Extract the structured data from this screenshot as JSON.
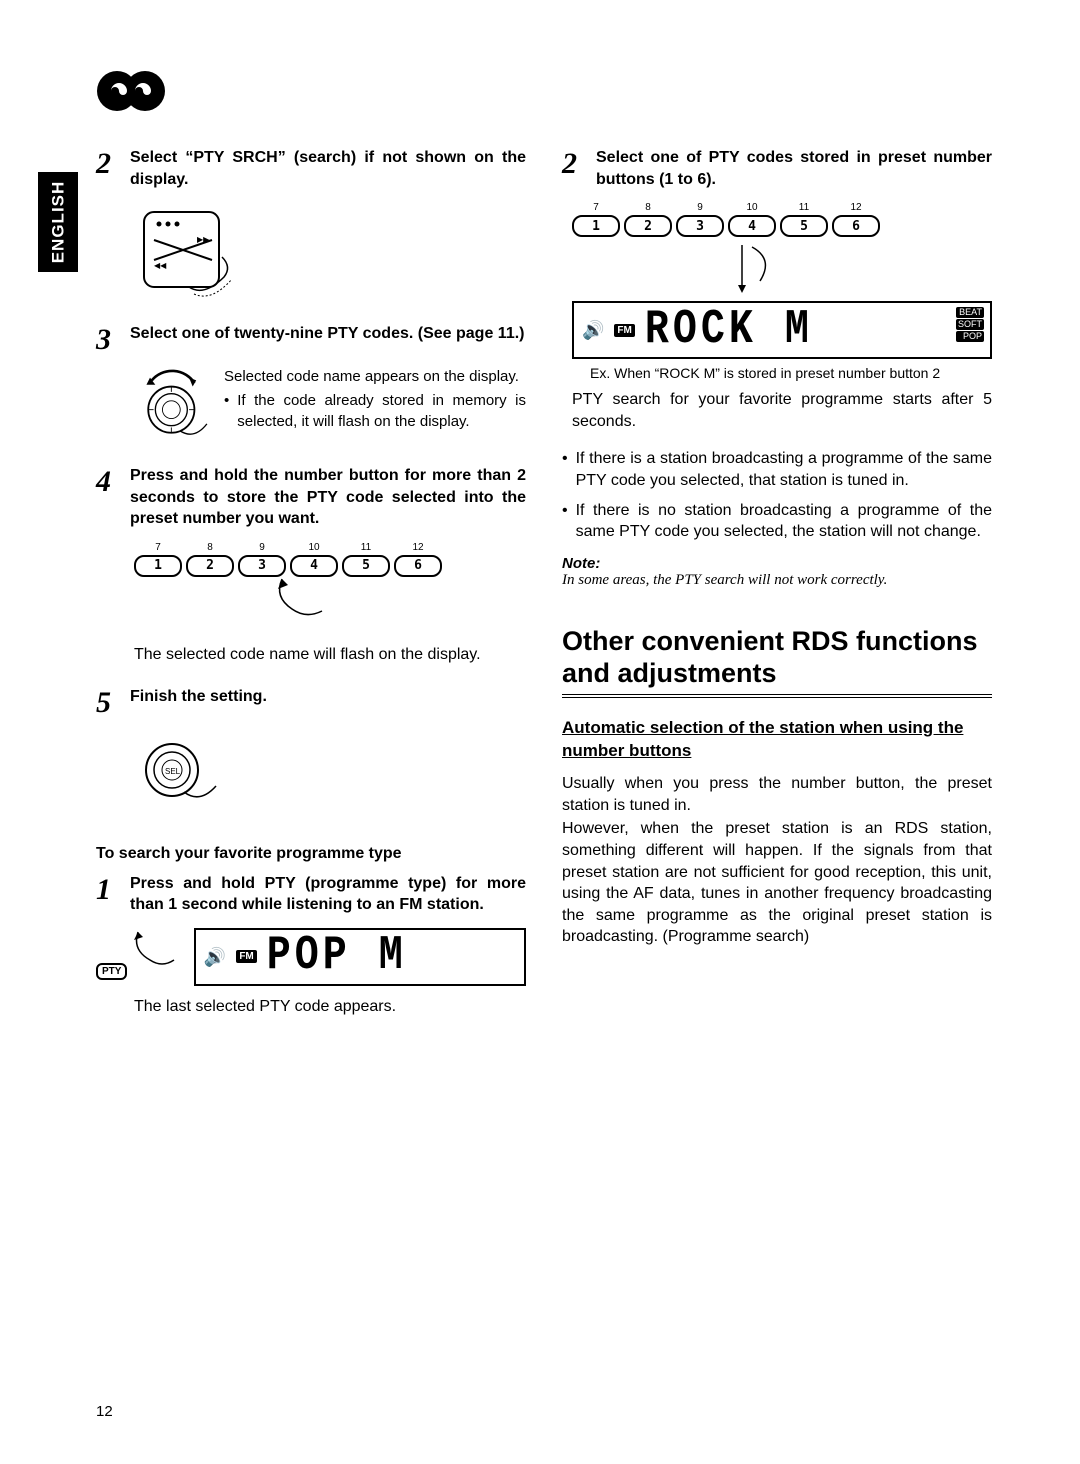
{
  "page_number": "12",
  "language_tab": "ENGLISH",
  "left": {
    "step2": {
      "title": "Select “PTY SRCH” (search) if not shown on the display."
    },
    "step3": {
      "title": "Select one of twenty-nine PTY codes. (See page 11.)",
      "line1": "Selected code name appears on the display.",
      "bullet": "If the code already stored in memory is selected, it will flash on the display."
    },
    "step4": {
      "title": "Press and hold the number button for more than 2 seconds to store the PTY code selected into the preset number you want.",
      "after": "The selected code name will flash on the display."
    },
    "step5": {
      "title": "Finish the setting."
    },
    "search_heading": "To search your favorite programme type",
    "search_step1": {
      "title": "Press and hold PTY (programme type) for more than 1 second while listening to an FM station.",
      "after": "The last selected PTY code appears."
    },
    "pty_button_label": "PTY",
    "lcd1": {
      "fm": "FM",
      "text": "POP  M"
    }
  },
  "right": {
    "step2": {
      "title": "Select one of PTY codes stored in preset number buttons (1 to 6).",
      "caption": "Ex. When “ROCK M” is stored in preset number button 2",
      "after": "PTY search for your favorite programme starts after 5 seconds."
    },
    "lcd2": {
      "fm": "FM",
      "text": "ROCK M",
      "icons": [
        "BEAT",
        "SOFT",
        "POP"
      ]
    },
    "bullet1": "If there is a station broadcasting a programme of the same PTY code you selected, that station is tuned in.",
    "bullet2": "If there is no station broadcasting a programme of the same PTY code you selected, the station will not change.",
    "note_label": "Note:",
    "note_text": "In some areas, the PTY search will not work correctly.",
    "h2": "Other convenient RDS functions and adjustments",
    "h3": "Automatic selection of the station when using the number buttons",
    "para": "Usually when you press the number button, the preset station is tuned in.\nHowever, when the preset station is an RDS station, something different will happen. If the signals from that preset station are not sufficient for good reception, this unit, using the AF data, tunes in another frequency broadcasting the same programme as the original preset station is broadcasting. (Programme search)"
  },
  "preset_buttons": {
    "top_numbers": [
      "7",
      "8",
      "9",
      "10",
      "11",
      "12"
    ],
    "labels": [
      "1",
      "2",
      "3",
      "4",
      "5",
      "6"
    ]
  },
  "colors": {
    "text": "#000000",
    "background": "#ffffff"
  }
}
